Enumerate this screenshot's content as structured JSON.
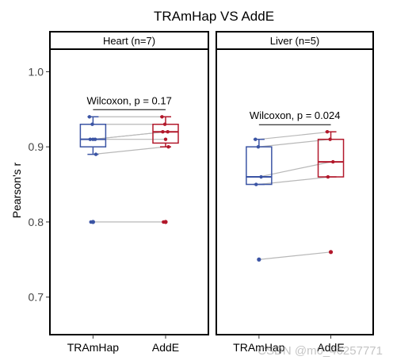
{
  "chart_data": {
    "type": "box",
    "title": "TRAmHap VS AddE",
    "ylabel": "Pearson's r",
    "xlabel": "",
    "ylim": [
      0.65,
      1.03
    ],
    "yticks": [
      0.7,
      0.8,
      0.9,
      1.0
    ],
    "ytick_labels": [
      "0.7",
      "0.8",
      "0.9",
      "1.0"
    ],
    "categories": [
      "TRAmHap",
      "AddE"
    ],
    "colors": {
      "TRAmHap": "#3b54a4",
      "AddE": "#b2182b",
      "paired_line": "#b8b8b8"
    },
    "watermark": "CSDN @m0_46257771",
    "panels": [
      {
        "name": "Heart (n=7)",
        "test_label": "Wilcoxon, p = 0.17",
        "pairs": [
          [
            0.94,
            0.94
          ],
          [
            0.93,
            0.93
          ],
          [
            0.91,
            0.92
          ],
          [
            0.91,
            0.92
          ],
          [
            0.91,
            0.91
          ],
          [
            0.89,
            0.9
          ],
          [
            0.8,
            0.8
          ]
        ],
        "boxes": {
          "TRAmHap": {
            "q1": 0.9,
            "median": 0.91,
            "q3": 0.93,
            "whisker_low": 0.89,
            "whisker_high": 0.94,
            "outliers": [
              0.8
            ]
          },
          "AddE": {
            "q1": 0.905,
            "median": 0.92,
            "q3": 0.93,
            "whisker_low": 0.9,
            "whisker_high": 0.94,
            "outliers": [
              0.8
            ]
          }
        }
      },
      {
        "name": "Liver (n=5)",
        "test_label": "Wilcoxon, p = 0.024",
        "pairs": [
          [
            0.91,
            0.92
          ],
          [
            0.9,
            0.91
          ],
          [
            0.86,
            0.88
          ],
          [
            0.85,
            0.86
          ],
          [
            0.75,
            0.76
          ]
        ],
        "boxes": {
          "TRAmHap": {
            "q1": 0.85,
            "median": 0.86,
            "q3": 0.9,
            "whisker_low": 0.85,
            "whisker_high": 0.91,
            "outliers": [
              0.75
            ]
          },
          "AddE": {
            "q1": 0.86,
            "median": 0.88,
            "q3": 0.91,
            "whisker_low": 0.86,
            "whisker_high": 0.92,
            "outliers": [
              0.76
            ]
          }
        }
      }
    ]
  }
}
